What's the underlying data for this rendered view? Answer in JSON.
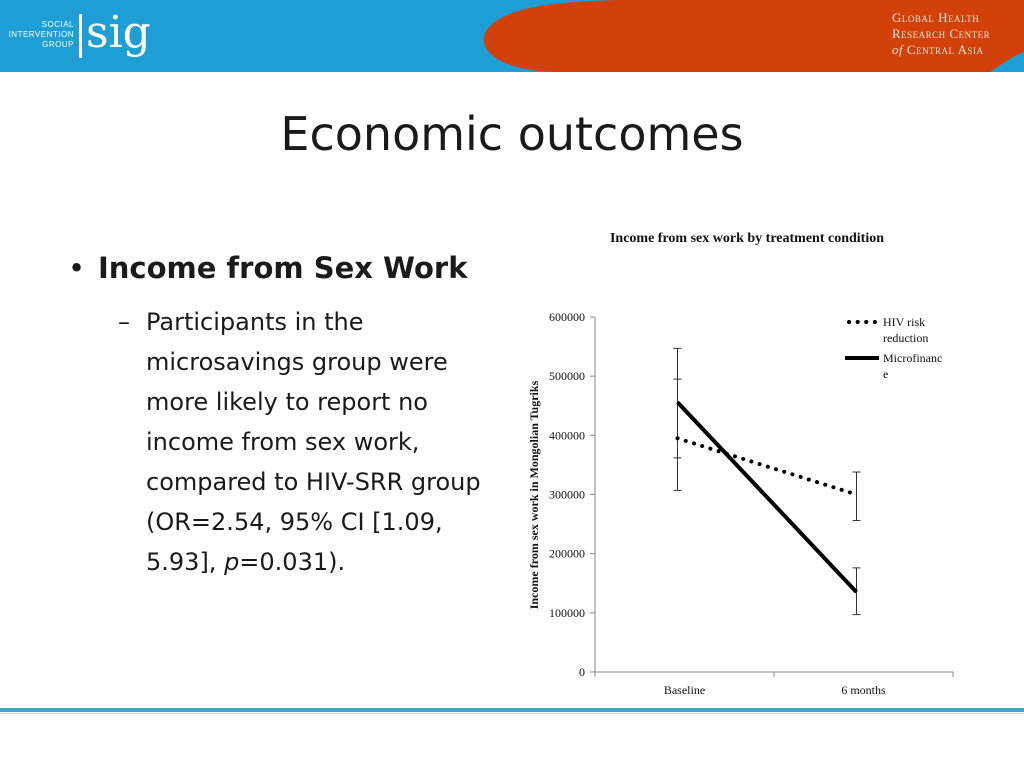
{
  "header": {
    "logo_small_lines": [
      "SOCIAL",
      "INTERVENTION",
      "GROUP"
    ],
    "logo_text": "sig",
    "org_lines": [
      "Global Health",
      "Research Center",
      "of",
      "Central Asia"
    ],
    "colors": {
      "blue": "#1d9fd6",
      "orange": "#d2410a",
      "white": "#ffffff"
    }
  },
  "slide": {
    "title": "Economic outcomes",
    "bullet": "Income from Sex Work",
    "sub_bullet_dash": "–",
    "sub_bullet_text_a": "Participants in the microsavings group were more likely to report no income from sex work, compared to HIV-SRR group (OR=2.54, 95% CI [1.09, 5.93], ",
    "sub_bullet_p": "p",
    "sub_bullet_text_b": "=0.031)."
  },
  "chart_data": {
    "type": "line",
    "title": "Income from sex work by treatment condition",
    "ylabel": "Income from sex work in Mongolian Tugriks",
    "xlabel": "",
    "categories": [
      "Baseline",
      "6 months"
    ],
    "ylim": [
      0,
      600000
    ],
    "yticks": [
      0,
      100000,
      200000,
      300000,
      400000,
      500000,
      600000
    ],
    "ytick_labels": [
      "0",
      "100000",
      "200000",
      "300000",
      "400000",
      "500000",
      "600000"
    ],
    "legend_position": "top-right",
    "series": [
      {
        "name": "HIV risk reduction",
        "legend_lines": [
          "HIV risk",
          "reduction"
        ],
        "style": "dotted",
        "values": [
          395000,
          300000
        ],
        "error_low": [
          362000,
          256000
        ],
        "error_high": [
          495000,
          338000
        ]
      },
      {
        "name": "Microfinance",
        "legend_lines": [
          "Microfinanc",
          "e"
        ],
        "style": "solid",
        "values": [
          456000,
          135000
        ],
        "error_low": [
          307000,
          97000
        ],
        "error_high": [
          547000,
          176000
        ]
      }
    ],
    "grid": false
  }
}
